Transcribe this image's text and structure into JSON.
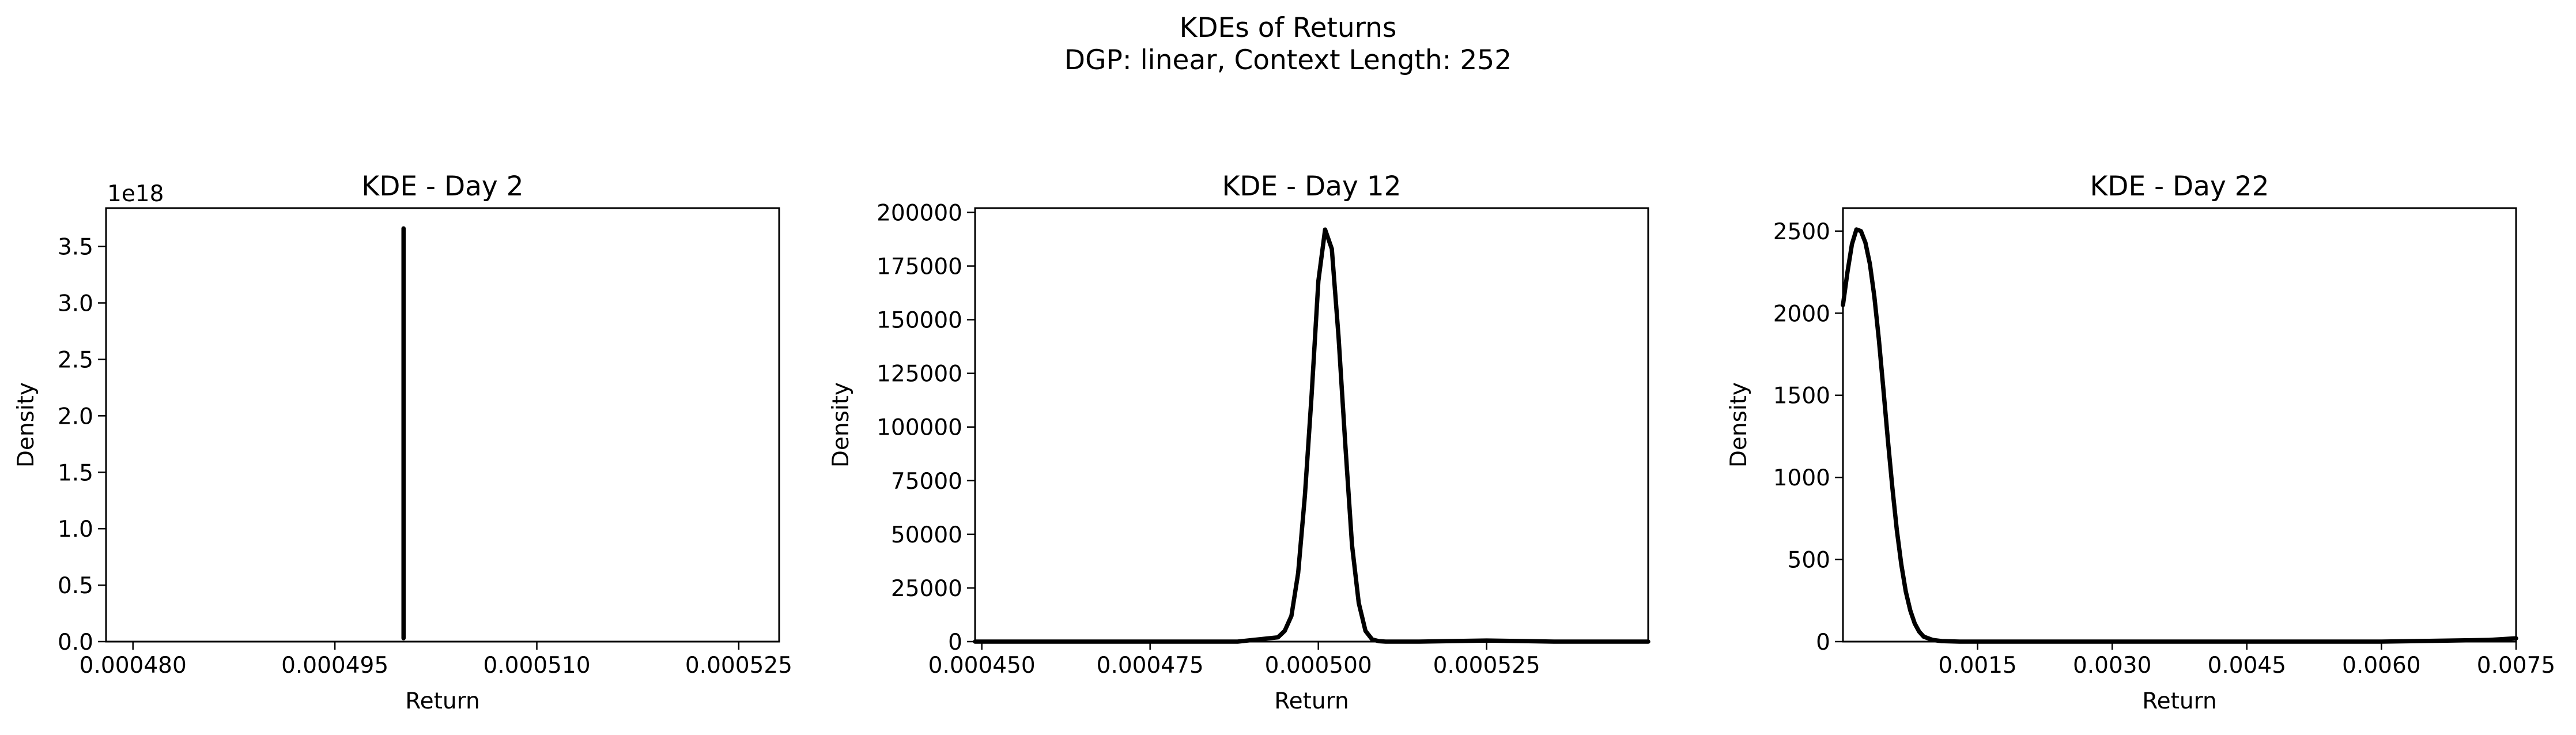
{
  "figure": {
    "title": "KDEs of Returns",
    "subtitle": "DGP: linear, Context Length: 252"
  },
  "colors": {
    "background": "#ffffff",
    "line": "#000000"
  },
  "chart_data": [
    {
      "type": "line",
      "title": "KDE - Day 2",
      "xlabel": "Return",
      "ylabel": "Density",
      "offset_text": "1e18",
      "xlim": [
        0.000478,
        0.000528
      ],
      "ylim": [
        0,
        3.84e+18
      ],
      "xticks": [
        0.00048,
        0.000495,
        0.00051,
        0.000525
      ],
      "xtick_labels": [
        "0.000480",
        "0.000495",
        "0.000510",
        "0.000525"
      ],
      "yticks": [
        0,
        5e+17,
        1e+18,
        1.5e+18,
        2e+18,
        2.5e+18,
        3e+18,
        3.5e+18
      ],
      "ytick_labels": [
        "0.0",
        "0.5",
        "1.0",
        "1.5",
        "2.0",
        "2.5",
        "3.0",
        "3.5"
      ],
      "series": [
        {
          "x": [
            0.0005001,
            0.0005001,
            0.0005001
          ],
          "y": [
            3e+16,
            3.66e+18,
            3e+16
          ]
        }
      ]
    },
    {
      "type": "line",
      "title": "KDE - Day 12",
      "xlabel": "Return",
      "ylabel": "Density",
      "xlim": [
        0.000449,
        0.000549
      ],
      "ylim": [
        0,
        202000
      ],
      "xticks": [
        0.00045,
        0.000475,
        0.0005,
        0.000525
      ],
      "xtick_labels": [
        "0.000450",
        "0.000475",
        "0.000500",
        "0.000525"
      ],
      "yticks": [
        0,
        25000,
        50000,
        75000,
        100000,
        125000,
        150000,
        175000,
        200000
      ],
      "ytick_labels": [
        "0",
        "25000",
        "50000",
        "75000",
        "100000",
        "125000",
        "150000",
        "175000",
        "200000"
      ],
      "series": [
        {
          "x": [
            0.000449,
            0.00047,
            0.000488,
            0.000494,
            0.000495,
            0.000496,
            0.000497,
            0.000498,
            0.000499,
            0.0005,
            0.000501,
            0.000502,
            0.000503,
            0.000504,
            0.000505,
            0.000506,
            0.000507,
            0.000508,
            0.000509,
            0.00051,
            0.000512,
            0.000515,
            0.000525,
            0.000535,
            0.000549
          ],
          "y": [
            0,
            0,
            0,
            2000,
            5000,
            12000,
            32000,
            68000,
            115000,
            168000,
            192000,
            183000,
            142000,
            92000,
            45000,
            18000,
            5000,
            1000,
            200,
            0,
            0,
            0,
            500,
            0,
            0
          ]
        }
      ]
    },
    {
      "type": "line",
      "title": "KDE - Day 22",
      "xlabel": "Return",
      "ylabel": "Density",
      "xlim": [
        0,
        0.0075
      ],
      "ylim": [
        0,
        2640
      ],
      "xticks": [
        0.0015,
        0.003,
        0.0045,
        0.006,
        0.0075
      ],
      "xtick_labels": [
        "0.0015",
        "0.0030",
        "0.0045",
        "0.0060",
        "0.0075"
      ],
      "yticks": [
        0,
        500,
        1000,
        1500,
        2000,
        2500
      ],
      "ytick_labels": [
        "0",
        "500",
        "1000",
        "1500",
        "2000",
        "2500"
      ],
      "series": [
        {
          "x": [
            0,
            5e-05,
            0.0001,
            0.00015,
            0.0002,
            0.00025,
            0.0003,
            0.00035,
            0.0004,
            0.00045,
            0.0005,
            0.00055,
            0.0006,
            0.00065,
            0.0007,
            0.00075,
            0.0008,
            0.00085,
            0.0009,
            0.001,
            0.0011,
            0.0013,
            0.0016,
            0.003,
            0.0045,
            0.006,
            0.0072,
            0.0075
          ],
          "y": [
            2050,
            2250,
            2420,
            2510,
            2500,
            2430,
            2300,
            2100,
            1840,
            1540,
            1230,
            940,
            680,
            470,
            305,
            190,
            110,
            60,
            30,
            10,
            3,
            0,
            0,
            0,
            0,
            0,
            10,
            20
          ]
        }
      ]
    }
  ]
}
